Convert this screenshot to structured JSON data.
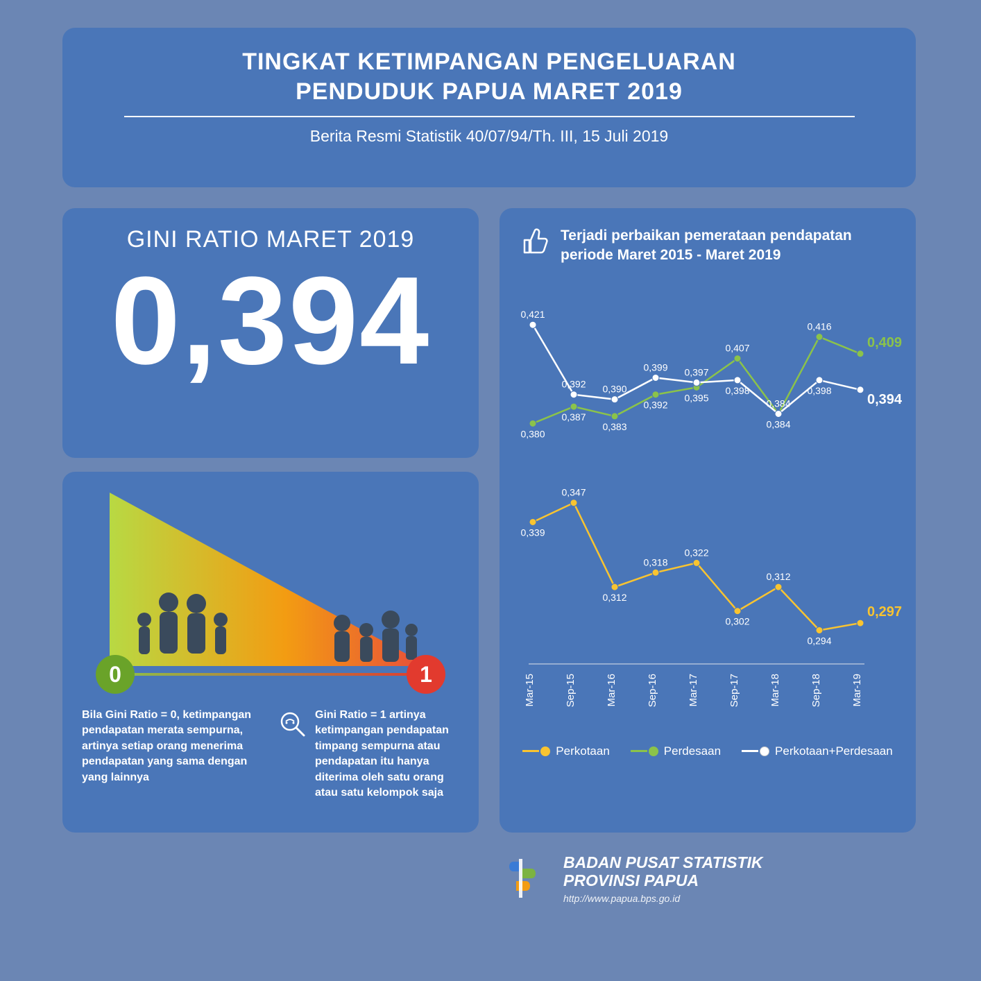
{
  "colors": {
    "page_bg": "#6b86b4",
    "panel_bg": "#4a76b8",
    "text": "#ffffff",
    "accent_yellow": "#f9c430",
    "accent_green": "#8bc34a",
    "accent_white": "#ffffff",
    "scale0_bg": "#6aa329",
    "scale1_bg": "#e23a2e",
    "grad_left": "#b8d943",
    "grad_mid": "#f39c12",
    "grad_right": "#e74c3c",
    "logo_blue": "#3a7bd5",
    "logo_green": "#7cb342",
    "logo_orange": "#f39c12"
  },
  "header": {
    "title_l1": "TINGKAT KETIMPANGAN PENGELUARAN",
    "title_l2": "PENDUDUK PAPUA MARET 2019",
    "subtitle": "Berita Resmi Statistik 40/07/94/Th. III,  15 Juli 2019"
  },
  "gini": {
    "title": "GINI RATIO MARET 2019",
    "value": "0,394"
  },
  "explain": {
    "scale0": "0",
    "scale1": "1",
    "col0": "Bila Gini Ratio = 0, ketimpangan pendapatan merata sempurna,  artinya setiap orang menerima  pendapatan yang sama dengan yang lainnya",
    "col1": "Gini Ratio = 1 artinya ketimpangan pendapatan timpang sempurna atau pendapatan itu hanya diterima oleh satu orang atau satu kelompok saja"
  },
  "chart": {
    "head_text": "Terjadi perbaikan pemerataan pendapatan periode Maret 2015 - Maret 2019",
    "type": "line",
    "categories": [
      "Mar-15",
      "Sep-15",
      "Mar-16",
      "Sep-16",
      "Mar-17",
      "Sep-17",
      "Mar-18",
      "Sep-18",
      "Mar-19"
    ],
    "ylim": [
      0.28,
      0.43
    ],
    "series": [
      {
        "name": "Perkotaan",
        "color": "#f9c430",
        "values": [
          0.339,
          0.347,
          0.312,
          0.318,
          0.322,
          0.302,
          0.312,
          0.294,
          0.297
        ],
        "labels": [
          "0,339",
          "0,347",
          "0,312",
          "0,318",
          "0,322",
          "0,302",
          "0,312",
          "0,294",
          "0,297"
        ],
        "label_pos": [
          "below",
          "above",
          "below",
          "above",
          "above",
          "below",
          "above",
          "below",
          "above"
        ],
        "end_label_color": "#f9c430",
        "end_label_bold": true
      },
      {
        "name": "Perdesaan",
        "color": "#8bc34a",
        "values": [
          0.38,
          0.387,
          0.383,
          0.392,
          0.395,
          0.407,
          0.384,
          0.416,
          0.409
        ],
        "labels": [
          "0,380",
          "0,387",
          "0,383",
          "0,392",
          "0,395",
          "0,407",
          "0,384",
          "0,416",
          "0,409"
        ],
        "label_pos": [
          "below",
          "below",
          "below",
          "below",
          "below",
          "above",
          "above",
          "above",
          "above"
        ],
        "end_label_color": "#8bc34a",
        "end_label_bold": true
      },
      {
        "name": "Perkotaan+Perdesaan",
        "color": "#ffffff",
        "values": [
          0.421,
          0.392,
          0.39,
          0.399,
          0.397,
          0.398,
          0.384,
          0.398,
          0.394
        ],
        "labels": [
          "0,421",
          "0,392",
          "0,390",
          "0,399",
          "0,397",
          "0,398",
          "0,384",
          "0,398",
          "0,394"
        ],
        "label_pos": [
          "above",
          "above",
          "above",
          "above",
          "above",
          "below",
          "below",
          "below",
          "below"
        ],
        "end_label_color": "#ffffff",
        "end_label_bold": true
      }
    ],
    "label_fontsize": 14,
    "end_label_fontsize": 20,
    "axis_fontsize": 15,
    "marker_radius": 5,
    "line_width": 2.5,
    "baseline_color": "#aebfd9"
  },
  "footer": {
    "org_l1": "BADAN PUSAT STATISTIK",
    "org_l2": "PROVINSI PAPUA",
    "url": "http://www.papua.bps.go.id"
  }
}
